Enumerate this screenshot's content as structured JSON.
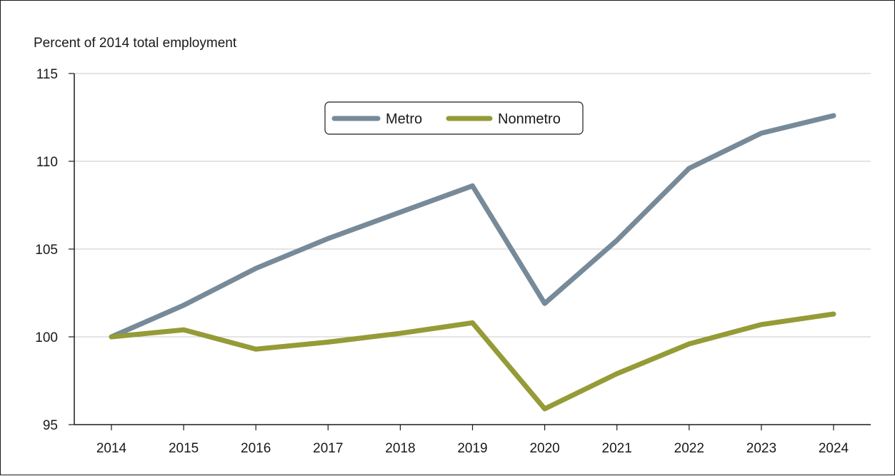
{
  "chart_data": {
    "type": "line",
    "title": "",
    "ylabel": "Percent of 2014 total employment",
    "xlabel": "",
    "x": [
      "2014",
      "2015",
      "2016",
      "2017",
      "2018",
      "2019",
      "2020",
      "2021",
      "2022",
      "2023",
      "2024"
    ],
    "ylim": [
      95,
      115
    ],
    "yticks": [
      95,
      100,
      105,
      110,
      115
    ],
    "grid": "horizontal",
    "legend_position": "top-center",
    "series": [
      {
        "name": "Metro",
        "color": "#778a99",
        "values": [
          100.0,
          101.8,
          103.9,
          105.6,
          107.1,
          108.6,
          101.9,
          105.5,
          109.6,
          111.6,
          112.6
        ]
      },
      {
        "name": "Nonmetro",
        "color": "#959b36",
        "values": [
          100.0,
          100.4,
          99.3,
          99.7,
          100.2,
          100.8,
          95.9,
          97.9,
          99.6,
          100.7,
          101.3
        ]
      }
    ]
  }
}
